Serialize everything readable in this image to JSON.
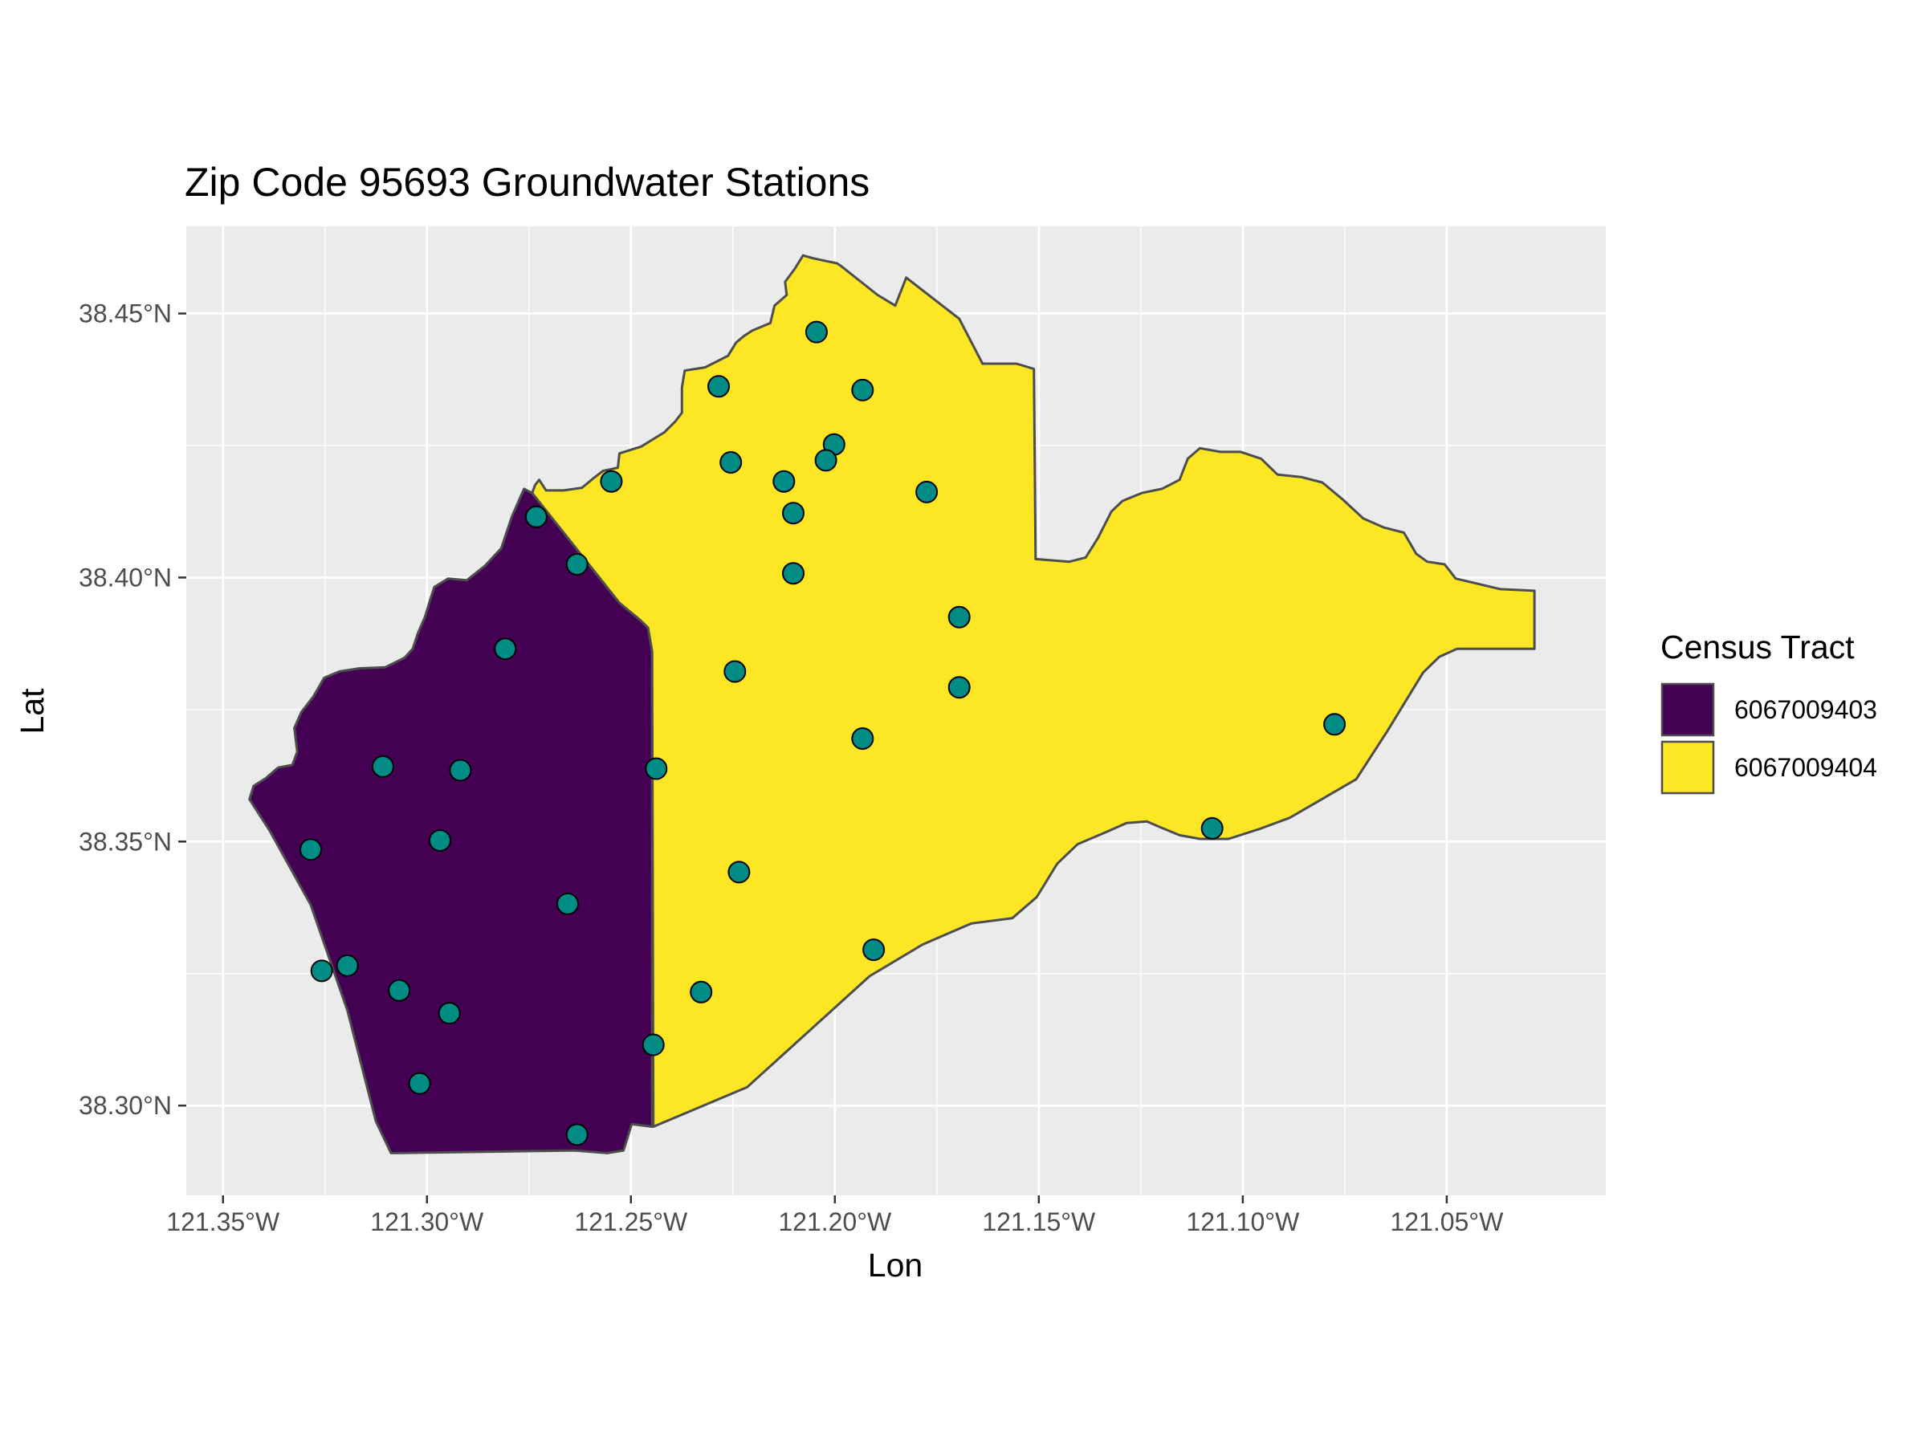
{
  "title": "Zip Code 95693 Groundwater Stations",
  "chart_data": {
    "type": "map",
    "title": "Zip Code 95693 Groundwater Stations",
    "xlabel": "Lon",
    "ylabel": "Lat",
    "x_ticks": [
      "121.35°W",
      "121.30°W",
      "121.25°W",
      "121.20°W",
      "121.15°W",
      "121.10°W",
      "121.05°W"
    ],
    "x_tick_values": [
      -121.35,
      -121.3,
      -121.25,
      -121.2,
      -121.15,
      -121.1,
      -121.05
    ],
    "y_ticks": [
      "38.30°N",
      "38.35°N",
      "38.40°N",
      "38.45°N"
    ],
    "y_tick_values": [
      38.3,
      38.35,
      38.4,
      38.45
    ],
    "xlim": [
      -121.359,
      -121.011
    ],
    "ylim": [
      38.283,
      38.4665
    ],
    "grid": true,
    "legend": {
      "title": "Census Tract",
      "position": "right",
      "entries": [
        {
          "label": "6067009403",
          "color": "#440154"
        },
        {
          "label": "6067009404",
          "color": "#FDE725"
        }
      ]
    },
    "regions": [
      {
        "name": "6067009403",
        "fill": "#440154",
        "boundary": [
          [
            -121.3435,
            38.358
          ],
          [
            -121.3425,
            38.3605
          ],
          [
            -121.3395,
            38.362
          ],
          [
            -121.3365,
            38.364
          ],
          [
            -121.333,
            38.3645
          ],
          [
            -121.3318,
            38.367
          ],
          [
            -121.3325,
            38.3715
          ],
          [
            -121.3308,
            38.3745
          ],
          [
            -121.3278,
            38.3775
          ],
          [
            -121.3252,
            38.381
          ],
          [
            -121.3215,
            38.3822
          ],
          [
            -121.3165,
            38.3828
          ],
          [
            -121.3102,
            38.383
          ],
          [
            -121.3055,
            38.3848
          ],
          [
            -121.3035,
            38.3865
          ],
          [
            -121.3022,
            38.3895
          ],
          [
            -121.3005,
            38.3925
          ],
          [
            -121.2992,
            38.3958
          ],
          [
            -121.2982,
            38.3982
          ],
          [
            -121.2948,
            38.3998
          ],
          [
            -121.2902,
            38.3995
          ],
          [
            -121.2858,
            38.4022
          ],
          [
            -121.2818,
            38.4055
          ],
          [
            -121.2792,
            38.4115
          ],
          [
            -121.2762,
            38.4168
          ],
          [
            -121.2742,
            38.416
          ],
          [
            -121.2528,
            38.3952
          ],
          [
            -121.2478,
            38.392
          ],
          [
            -121.2458,
            38.3905
          ],
          [
            -121.2448,
            38.386
          ],
          [
            -121.2448,
            38.296
          ],
          [
            -121.2498,
            38.2965
          ],
          [
            -121.2518,
            38.2915
          ],
          [
            -121.2558,
            38.291
          ],
          [
            -121.2638,
            38.2915
          ],
          [
            -121.3088,
            38.291
          ],
          [
            -121.3125,
            38.297
          ],
          [
            -121.3195,
            38.318
          ],
          [
            -121.3285,
            38.338
          ],
          [
            -121.3385,
            38.352
          ]
        ]
      },
      {
        "name": "6067009404",
        "fill": "#FDE725",
        "boundary": [
          [
            -121.2742,
            38.416
          ],
          [
            -121.2735,
            38.4175
          ],
          [
            -121.2725,
            38.4185
          ],
          [
            -121.2708,
            38.4165
          ],
          [
            -121.2665,
            38.4165
          ],
          [
            -121.262,
            38.417
          ],
          [
            -121.2592,
            38.4188
          ],
          [
            -121.2568,
            38.4202
          ],
          [
            -121.2532,
            38.4208
          ],
          [
            -121.2528,
            38.4235
          ],
          [
            -121.2475,
            38.4248
          ],
          [
            -121.2418,
            38.4275
          ],
          [
            -121.2392,
            38.4295
          ],
          [
            -121.2375,
            38.4312
          ],
          [
            -121.2375,
            38.4335
          ],
          [
            -121.2375,
            38.436
          ],
          [
            -121.2368,
            38.4392
          ],
          [
            -121.2318,
            38.4398
          ],
          [
            -121.2292,
            38.4408
          ],
          [
            -121.2262,
            38.442
          ],
          [
            -121.2242,
            38.4445
          ],
          [
            -121.2222,
            38.4458
          ],
          [
            -121.2202,
            38.4468
          ],
          [
            -121.2158,
            38.4482
          ],
          [
            -121.2148,
            38.4515
          ],
          [
            -121.2118,
            38.4535
          ],
          [
            -121.2122,
            38.456
          ],
          [
            -121.2098,
            38.4585
          ],
          [
            -121.2078,
            38.461
          ],
          [
            -121.2055,
            38.4605
          ],
          [
            -121.2025,
            38.46
          ],
          [
            -121.1995,
            38.4595
          ],
          [
            -121.1985,
            38.459
          ],
          [
            -121.1895,
            38.4535
          ],
          [
            -121.1852,
            38.4515
          ],
          [
            -121.1825,
            38.4568
          ],
          [
            -121.1695,
            38.449
          ],
          [
            -121.1658,
            38.4435
          ],
          [
            -121.1638,
            38.4405
          ],
          [
            -121.1555,
            38.4405
          ],
          [
            -121.1512,
            38.4395
          ],
          [
            -121.1508,
            38.4035
          ],
          [
            -121.1425,
            38.403
          ],
          [
            -121.1385,
            38.4038
          ],
          [
            -121.1355,
            38.4075
          ],
          [
            -121.1322,
            38.4125
          ],
          [
            -121.1295,
            38.4145
          ],
          [
            -121.1248,
            38.416
          ],
          [
            -121.1198,
            38.4168
          ],
          [
            -121.1155,
            38.4185
          ],
          [
            -121.1135,
            38.4225
          ],
          [
            -121.1105,
            38.4245
          ],
          [
            -121.1055,
            38.4238
          ],
          [
            -121.1005,
            38.4238
          ],
          [
            -121.0955,
            38.4225
          ],
          [
            -121.0915,
            38.4195
          ],
          [
            -121.0855,
            38.419
          ],
          [
            -121.0805,
            38.418
          ],
          [
            -121.0755,
            38.4148
          ],
          [
            -121.0705,
            38.4112
          ],
          [
            -121.0655,
            38.4095
          ],
          [
            -121.0605,
            38.4085
          ],
          [
            -121.0575,
            38.4045
          ],
          [
            -121.0548,
            38.403
          ],
          [
            -121.0505,
            38.4025
          ],
          [
            -121.0478,
            38.3998
          ],
          [
            -121.0368,
            38.3978
          ],
          [
            -121.0285,
            38.3975
          ],
          [
            -121.0285,
            38.3865
          ],
          [
            -121.0415,
            38.3865
          ],
          [
            -121.0475,
            38.3865
          ],
          [
            -121.0518,
            38.385
          ],
          [
            -121.0558,
            38.382
          ],
          [
            -121.0645,
            38.371
          ],
          [
            -121.0722,
            38.3618
          ],
          [
            -121.0885,
            38.3545
          ],
          [
            -121.0955,
            38.3525
          ],
          [
            -121.1035,
            38.3505
          ],
          [
            -121.1105,
            38.3505
          ],
          [
            -121.1155,
            38.3512
          ],
          [
            -121.1205,
            38.3528
          ],
          [
            -121.1235,
            38.3538
          ],
          [
            -121.1285,
            38.3535
          ],
          [
            -121.1335,
            38.3518
          ],
          [
            -121.1405,
            38.3495
          ],
          [
            -121.1455,
            38.3458
          ],
          [
            -121.1505,
            38.3395
          ],
          [
            -121.1565,
            38.3355
          ],
          [
            -121.1665,
            38.3345
          ],
          [
            -121.1725,
            38.3325
          ],
          [
            -121.1785,
            38.3305
          ],
          [
            -121.1915,
            38.3245
          ],
          [
            -121.2015,
            38.3175
          ],
          [
            -121.2115,
            38.3105
          ],
          [
            -121.2215,
            38.3035
          ],
          [
            -121.2445,
            38.296
          ],
          [
            -121.2448,
            38.386
          ],
          [
            -121.2458,
            38.3905
          ],
          [
            -121.2478,
            38.392
          ],
          [
            -121.2528,
            38.3952
          ]
        ]
      }
    ],
    "points": [
      {
        "lon": -121.2045,
        "lat": 38.4465
      },
      {
        "lon": -121.2285,
        "lat": 38.4362
      },
      {
        "lon": -121.1932,
        "lat": 38.4355
      },
      {
        "lon": -121.2002,
        "lat": 38.4252
      },
      {
        "lon": -121.2022,
        "lat": 38.4222
      },
      {
        "lon": -121.2255,
        "lat": 38.4218
      },
      {
        "lon": -121.2125,
        "lat": 38.4182
      },
      {
        "lon": -121.2548,
        "lat": 38.4182
      },
      {
        "lon": -121.1775,
        "lat": 38.4162
      },
      {
        "lon": -121.2732,
        "lat": 38.4115
      },
      {
        "lon": -121.2102,
        "lat": 38.4122
      },
      {
        "lon": -121.2632,
        "lat": 38.4025
      },
      {
        "lon": -121.2102,
        "lat": 38.4008
      },
      {
        "lon": -121.1695,
        "lat": 38.3925
      },
      {
        "lon": -121.2808,
        "lat": 38.3865
      },
      {
        "lon": -121.2245,
        "lat": 38.3822
      },
      {
        "lon": -121.1695,
        "lat": 38.3792
      },
      {
        "lon": -121.0775,
        "lat": 38.3722
      },
      {
        "lon": -121.1932,
        "lat": 38.3695
      },
      {
        "lon": -121.3108,
        "lat": 38.3642
      },
      {
        "lon": -121.2918,
        "lat": 38.3635
      },
      {
        "lon": -121.2438,
        "lat": 38.3638
      },
      {
        "lon": -121.1075,
        "lat": 38.3525
      },
      {
        "lon": -121.2968,
        "lat": 38.3502
      },
      {
        "lon": -121.3285,
        "lat": 38.3485
      },
      {
        "lon": -121.2235,
        "lat": 38.3442
      },
      {
        "lon": -121.2655,
        "lat": 38.3382
      },
      {
        "lon": -121.1905,
        "lat": 38.3295
      },
      {
        "lon": -121.3258,
        "lat": 38.3255
      },
      {
        "lon": -121.3195,
        "lat": 38.3265
      },
      {
        "lon": -121.3068,
        "lat": 38.3218
      },
      {
        "lon": -121.2328,
        "lat": 38.3215
      },
      {
        "lon": -121.2945,
        "lat": 38.3175
      },
      {
        "lon": -121.2445,
        "lat": 38.3115
      },
      {
        "lon": -121.3018,
        "lat": 38.3042
      },
      {
        "lon": -121.2632,
        "lat": 38.2945
      }
    ],
    "point_fill": "#008C85"
  }
}
